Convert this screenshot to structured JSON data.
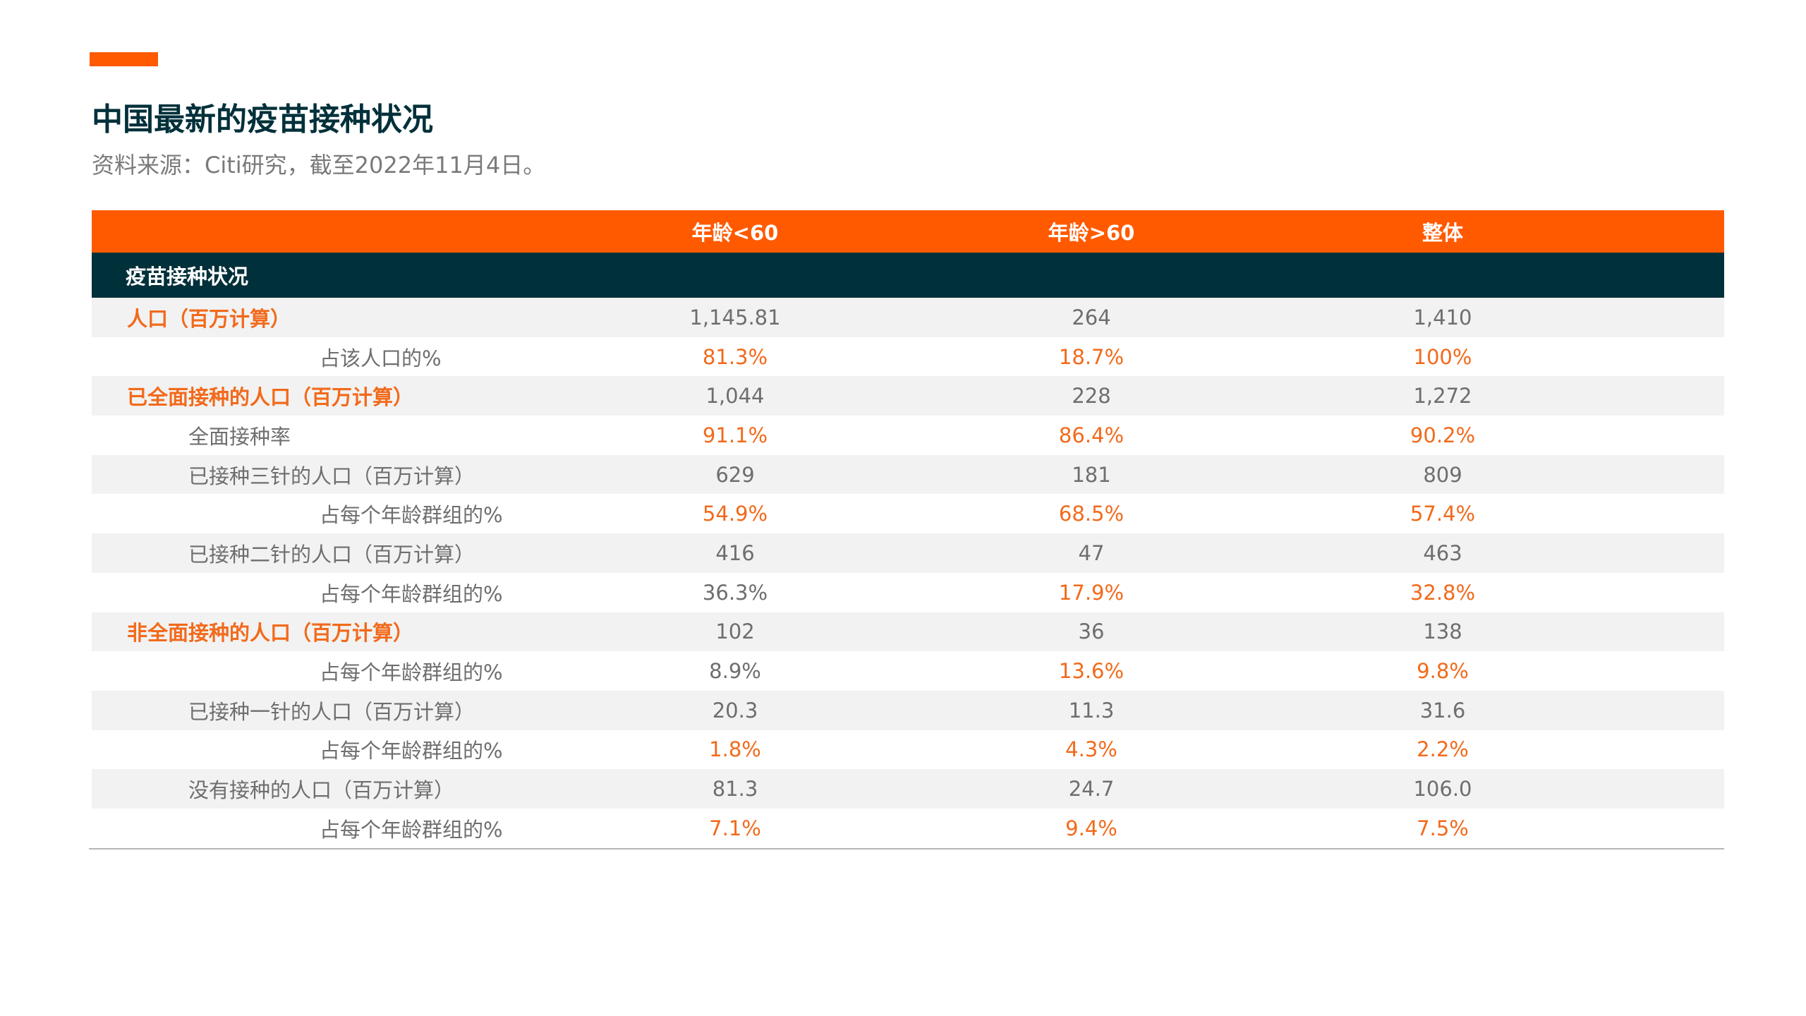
{
  "title": "中国最新的疫苗接种状况",
  "subtitle": "资料来源：Citi研究，截至2022年11月4日。",
  "colors": {
    "accent": "#ff5a00",
    "header_bg": "#ff5a00",
    "section_bg": "#00303a",
    "highlight_text": "#f26a1b",
    "normal_text": "#6e6e6e",
    "row_shade": "#f2f2f2"
  },
  "chart_data": {
    "type": "table",
    "title": "中国最新的疫苗接种状况",
    "subtitle": "资料来源：Citi研究，截至2022年11月4日。",
    "columns": [
      "年龄<60",
      "年龄>60",
      "整体"
    ],
    "section": "疫苗接种状况",
    "rows": [
      {
        "label": "人口（百万计算）",
        "level": 0,
        "emphasis": true,
        "values": [
          "1,145.81",
          "264",
          "1,410"
        ],
        "highlight": [
          false,
          false,
          false
        ]
      },
      {
        "label": "占该人口的%",
        "level": 2,
        "emphasis": false,
        "values": [
          "81.3%",
          "18.7%",
          "100%"
        ],
        "highlight": [
          true,
          true,
          true
        ]
      },
      {
        "label": "已全面接种的人口（百万计算）",
        "level": 0,
        "emphasis": true,
        "values": [
          "1,044",
          "228",
          "1,272"
        ],
        "highlight": [
          false,
          false,
          false
        ]
      },
      {
        "label": "全面接种率",
        "level": 1,
        "emphasis": false,
        "values": [
          "91.1%",
          "86.4%",
          "90.2%"
        ],
        "highlight": [
          true,
          true,
          true
        ]
      },
      {
        "label": "已接种三针的人口（百万计算）",
        "level": 1,
        "emphasis": false,
        "values": [
          "629",
          "181",
          "809"
        ],
        "highlight": [
          false,
          false,
          false
        ]
      },
      {
        "label": "占每个年龄群组的%",
        "level": 2,
        "emphasis": false,
        "values": [
          "54.9%",
          "68.5%",
          "57.4%"
        ],
        "highlight": [
          true,
          true,
          true
        ]
      },
      {
        "label": "已接种二针的人口（百万计算）",
        "level": 1,
        "emphasis": false,
        "values": [
          "416",
          "47",
          "463"
        ],
        "highlight": [
          false,
          false,
          false
        ]
      },
      {
        "label": "占每个年龄群组的%",
        "level": 2,
        "emphasis": false,
        "values": [
          "36.3%",
          "17.9%",
          "32.8%"
        ],
        "highlight": [
          false,
          true,
          true
        ]
      },
      {
        "label": "非全面接种的人口（百万计算）",
        "level": 0,
        "emphasis": true,
        "values": [
          "102",
          "36",
          "138"
        ],
        "highlight": [
          false,
          false,
          false
        ]
      },
      {
        "label": "占每个年龄群组的%",
        "level": 2,
        "emphasis": false,
        "values": [
          "8.9%",
          "13.6%",
          "9.8%"
        ],
        "highlight": [
          false,
          true,
          true
        ]
      },
      {
        "label": "已接种一针的人口（百万计算）",
        "level": 1,
        "emphasis": false,
        "values": [
          "20.3",
          "11.3",
          "31.6"
        ],
        "highlight": [
          false,
          false,
          false
        ]
      },
      {
        "label": "占每个年龄群组的%",
        "level": 2,
        "emphasis": false,
        "values": [
          "1.8%",
          "4.3%",
          "2.2%"
        ],
        "highlight": [
          true,
          true,
          true
        ]
      },
      {
        "label": "没有接种的人口（百万计算）",
        "level": 1,
        "emphasis": false,
        "values": [
          "81.3",
          "24.7",
          "106.0"
        ],
        "highlight": [
          false,
          false,
          false
        ]
      },
      {
        "label": "占每个年龄群组的%",
        "level": 2,
        "emphasis": false,
        "values": [
          "7.1%",
          "9.4%",
          "7.5%"
        ],
        "highlight": [
          true,
          true,
          true
        ]
      }
    ]
  }
}
